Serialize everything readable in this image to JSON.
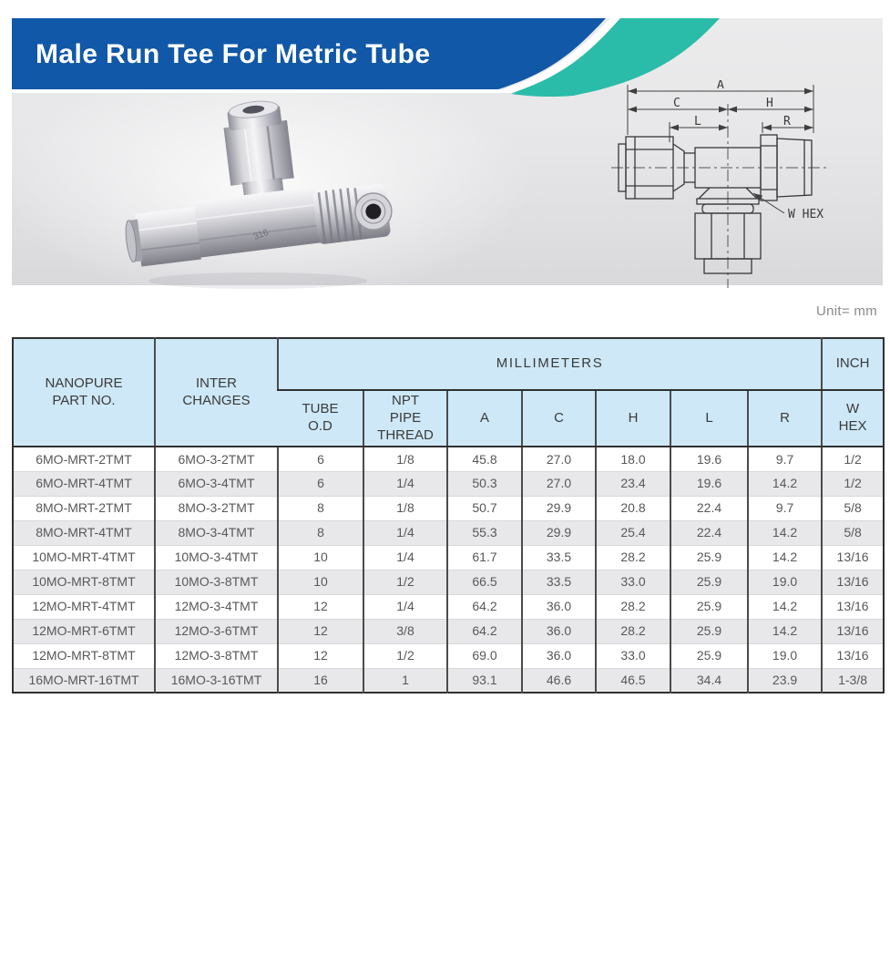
{
  "banner": {
    "title": "Male Run Tee For Metric Tube"
  },
  "hero": {
    "stamp": "316"
  },
  "unit_label": "Unit= mm",
  "diagram": {
    "dim_a": "A",
    "dim_c": "C",
    "dim_h": "H",
    "dim_l": "L",
    "dim_r": "R",
    "dim_whex": "W HEX"
  },
  "table": {
    "group_headers": {
      "millimeters": "MILLIMETERS",
      "inch": "INCH"
    },
    "columns": [
      "NANOPURE\nPART NO.",
      "INTER\nCHANGES",
      "TUBE\nO.D",
      "NPT\nPIPE\nTHREAD",
      "A",
      "C",
      "H",
      "L",
      "R",
      "W\nHEX"
    ],
    "rows": [
      [
        "6MO-MRT-2TMT",
        "6MO-3-2TMT",
        "6",
        "1/8",
        "45.8",
        "27.0",
        "18.0",
        "19.6",
        "9.7",
        "1/2"
      ],
      [
        "6MO-MRT-4TMT",
        "6MO-3-4TMT",
        "6",
        "1/4",
        "50.3",
        "27.0",
        "23.4",
        "19.6",
        "14.2",
        "1/2"
      ],
      [
        "8MO-MRT-2TMT",
        "8MO-3-2TMT",
        "8",
        "1/8",
        "50.7",
        "29.9",
        "20.8",
        "22.4",
        "9.7",
        "5/8"
      ],
      [
        "8MO-MRT-4TMT",
        "8MO-3-4TMT",
        "8",
        "1/4",
        "55.3",
        "29.9",
        "25.4",
        "22.4",
        "14.2",
        "5/8"
      ],
      [
        "10MO-MRT-4TMT",
        "10MO-3-4TMT",
        "10",
        "1/4",
        "61.7",
        "33.5",
        "28.2",
        "25.9",
        "14.2",
        "13/16"
      ],
      [
        "10MO-MRT-8TMT",
        "10MO-3-8TMT",
        "10",
        "1/2",
        "66.5",
        "33.5",
        "33.0",
        "25.9",
        "19.0",
        "13/16"
      ],
      [
        "12MO-MRT-4TMT",
        "12MO-3-4TMT",
        "12",
        "1/4",
        "64.2",
        "36.0",
        "28.2",
        "25.9",
        "14.2",
        "13/16"
      ],
      [
        "12MO-MRT-6TMT",
        "12MO-3-6TMT",
        "12",
        "3/8",
        "64.2",
        "36.0",
        "28.2",
        "25.9",
        "14.2",
        "13/16"
      ],
      [
        "12MO-MRT-8TMT",
        "12MO-3-8TMT",
        "12",
        "1/2",
        "69.0",
        "36.0",
        "33.0",
        "25.9",
        "19.0",
        "13/16"
      ],
      [
        "16MO-MRT-16TMT",
        "16MO-3-16TMT",
        "16",
        "1",
        "93.1",
        "46.6",
        "46.5",
        "34.4",
        "23.9",
        "1-3/8"
      ]
    ]
  },
  "colors": {
    "banner_blue": "#1158A8",
    "swoosh_teal": "#2ABCA9",
    "table_header_bg": "#CEE8F7",
    "row_alt_bg": "#E8E8EA"
  }
}
